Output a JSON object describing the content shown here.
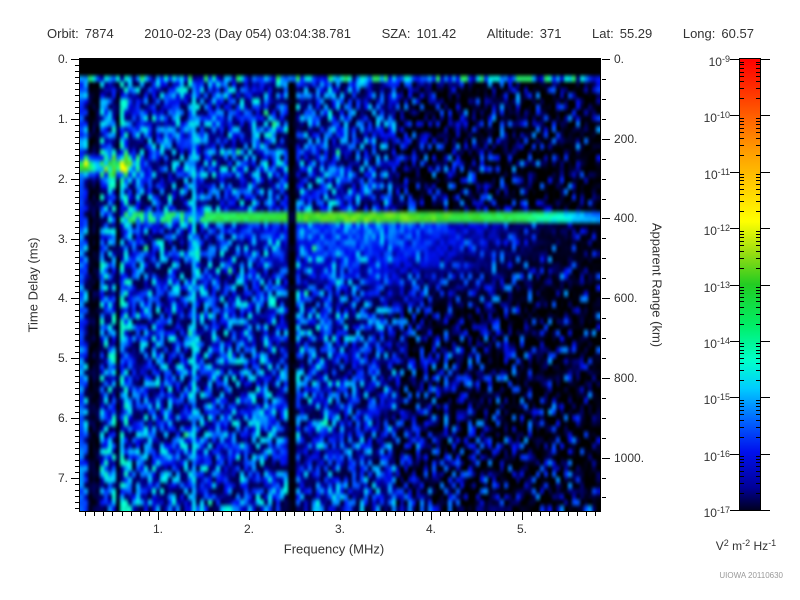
{
  "header": {
    "items": [
      {
        "label": "Orbit:",
        "value": "7874"
      },
      {
        "label": "",
        "value": "2010-02-23 (Day 054) 03:04:38.781"
      },
      {
        "label": "SZA:",
        "value": "101.42"
      },
      {
        "label": "Altitude:",
        "value": "371"
      },
      {
        "label": "Lat:",
        "value": "55.29"
      },
      {
        "label": "Long:",
        "value": "60.57"
      }
    ]
  },
  "chart_data": {
    "type": "heatmap",
    "description": "Radar sounder ionogram: received spectral density vs frequency and time delay. Mostly blue speckle noise on black, dense vertical striations below 0.85 MHz, a bright green horizontal ionospheric echo trace near 2.6 ms (~395 km apparent range), a thin transmit-pulse line near 0.3 ms under a blank black top band, a bright cyan vertical interference line near 1.4 MHz, a dark attenuated vertical gap near 2.5 MHz, and noise density falling off above ~3.6 MHz.",
    "x_axis": {
      "title": "Frequency (MHz)",
      "range": [
        0.143,
        5.857
      ],
      "major_tick_values": [
        1,
        2,
        3,
        4,
        5
      ],
      "major_tick_labels": [
        "1.",
        "2.",
        "3.",
        "4.",
        "5."
      ],
      "minor_tick_step": 0.1
    },
    "y_axis": {
      "title": "Time Delay (ms)",
      "range": [
        0,
        7.55
      ],
      "direction": "down",
      "major_tick_values": [
        0,
        1,
        2,
        3,
        4,
        5,
        6,
        7
      ],
      "major_tick_labels": [
        "0.",
        "1.",
        "2.",
        "3.",
        "4.",
        "5.",
        "6.",
        "7."
      ],
      "minor_tick_step": 0.1
    },
    "y2_axis": {
      "title": "Apparent Range (km)",
      "range": [
        0,
        1134
      ],
      "major_tick_values": [
        0,
        200,
        400,
        600,
        800,
        1000
      ],
      "major_tick_labels": [
        "0.",
        "200.",
        "400.",
        "600.",
        "800.",
        "1000."
      ],
      "minor_tick_step": 50
    },
    "colorbar": {
      "scale": "log",
      "tick_labels": [
        {
          "base": "10",
          "exp": "-9"
        },
        {
          "base": "10",
          "exp": "-10"
        },
        {
          "base": "10",
          "exp": "-11"
        },
        {
          "base": "10",
          "exp": "-12"
        },
        {
          "base": "10",
          "exp": "-13"
        },
        {
          "base": "10",
          "exp": "-14"
        },
        {
          "base": "10",
          "exp": "-15"
        },
        {
          "base": "10",
          "exp": "-16"
        },
        {
          "base": "10",
          "exp": "-17"
        }
      ],
      "unit_parts": [
        {
          "base": "V",
          "exp": "2"
        },
        {
          "base": "m",
          "exp": "-2"
        },
        {
          "base": "Hz",
          "exp": "-1"
        }
      ],
      "gradient_stops": [
        {
          "pos": 0,
          "color": "#000022"
        },
        {
          "pos": 5,
          "color": "#000099"
        },
        {
          "pos": 13,
          "color": "#0011ee"
        },
        {
          "pos": 20,
          "color": "#0066ff"
        },
        {
          "pos": 27,
          "color": "#00ccff"
        },
        {
          "pos": 33,
          "color": "#00ffcc"
        },
        {
          "pos": 41,
          "color": "#00ee66"
        },
        {
          "pos": 50,
          "color": "#22cc22"
        },
        {
          "pos": 57,
          "color": "#99dd11"
        },
        {
          "pos": 64,
          "color": "#ffff00"
        },
        {
          "pos": 80,
          "color": "#ff9900"
        },
        {
          "pos": 95,
          "color": "#ff2200"
        },
        {
          "pos": 100,
          "color": "#ff0000"
        }
      ]
    },
    "colormap_stops": [
      {
        "v": 0.0,
        "color": "#000000"
      },
      {
        "v": 0.05,
        "color": "#000066"
      },
      {
        "v": 0.13,
        "color": "#0011ee"
      },
      {
        "v": 0.2,
        "color": "#0055ff"
      },
      {
        "v": 0.27,
        "color": "#00bbff"
      },
      {
        "v": 0.33,
        "color": "#00eedd"
      },
      {
        "v": 0.4,
        "color": "#22ee77"
      },
      {
        "v": 0.5,
        "color": "#33cc33"
      },
      {
        "v": 0.57,
        "color": "#88e822"
      },
      {
        "v": 0.63,
        "color": "#ffff00"
      },
      {
        "v": 0.78,
        "color": "#ff8800"
      },
      {
        "v": 1.0,
        "color": "#ff0000"
      }
    ],
    "features": [
      {
        "name": "top-blank-band",
        "time_delay_ms": [
          0,
          0.25
        ]
      },
      {
        "name": "transmit-pulse-line",
        "time_delay_ms": 0.31
      },
      {
        "name": "ionospheric-echo-trace",
        "time_delay_ms": 2.62,
        "apparent_range_km": 395,
        "freq_range_mhz": [
          0.62,
          5.86
        ],
        "peak_freq_mhz": 3.4
      },
      {
        "name": "diffuse-echo-scatter",
        "time_delay_ms": [
          2.73,
          4.2
        ],
        "freq_center_mhz": 3.3
      },
      {
        "name": "low-freq-striations",
        "freq_range_mhz": [
          0.143,
          0.85
        ]
      },
      {
        "name": "interference-line",
        "freq_mhz": 1.4
      },
      {
        "name": "attenuation-gap",
        "freq_mhz": 2.48
      },
      {
        "name": "surface-blobs",
        "items": [
          {
            "freq_mhz": 0.19,
            "time_delay_ms": 1.8
          },
          {
            "freq_mhz": 0.58,
            "time_delay_ms": 1.78
          }
        ]
      },
      {
        "name": "noise-falloff",
        "freq_start_mhz": 3.6
      }
    ],
    "watermark": "UIOWA 20110630"
  },
  "colors": {
    "background": "#ffffff",
    "plot_background": "#000000",
    "axis": "#000000",
    "text": "#333333",
    "watermark_text": "#999999"
  }
}
